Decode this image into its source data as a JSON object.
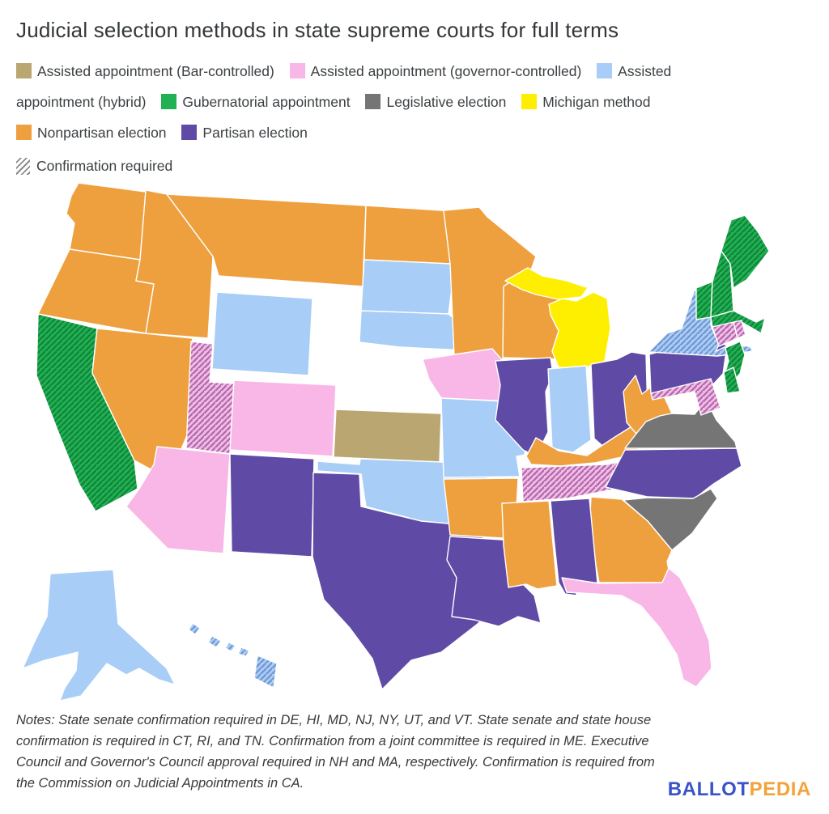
{
  "title": "Judicial selection methods in state supreme courts for full terms",
  "legend": {
    "order": [
      "bar",
      "governor",
      "hybrid",
      "gubernatorial",
      "legislative",
      "michigan",
      "nonpartisan",
      "partisan"
    ],
    "categories": {
      "bar": {
        "label": "Assisted appointment (Bar-controlled)",
        "color": "#b9a671"
      },
      "governor": {
        "label": "Assisted appointment (governor-controlled)",
        "color": "#f8b7e7",
        "hatch_color": "#a56ca6"
      },
      "hybrid": {
        "label": "Assisted appointment (hybrid)",
        "color": "#a8cdf6",
        "hatch_color": "#7394cf"
      },
      "gubernatorial": {
        "label": "Gubernatorial appointment",
        "color": "#1fb152",
        "hatch_color": "#12813a"
      },
      "legislative": {
        "label": "Legislative election",
        "color": "#757575"
      },
      "michigan": {
        "label": "Michigan method",
        "color": "#feee00"
      },
      "nonpartisan": {
        "label": "Nonpartisan election",
        "color": "#eea03f"
      },
      "partisan": {
        "label": "Partisan election",
        "color": "#5f4aa5"
      }
    },
    "confirmation": {
      "label": "Confirmation required",
      "hatch_color": "#8a8a8a"
    }
  },
  "map": {
    "border_color": "#ffffff",
    "states": [
      {
        "abbr": "WA",
        "name": "Washington",
        "category": "nonpartisan",
        "confirmation": false
      },
      {
        "abbr": "OR",
        "name": "Oregon",
        "category": "nonpartisan",
        "confirmation": false
      },
      {
        "abbr": "CA",
        "name": "California",
        "category": "gubernatorial",
        "confirmation": true
      },
      {
        "abbr": "NV",
        "name": "Nevada",
        "category": "nonpartisan",
        "confirmation": false
      },
      {
        "abbr": "ID",
        "name": "Idaho",
        "category": "nonpartisan",
        "confirmation": false
      },
      {
        "abbr": "MT",
        "name": "Montana",
        "category": "nonpartisan",
        "confirmation": false
      },
      {
        "abbr": "WY",
        "name": "Wyoming",
        "category": "hybrid",
        "confirmation": false
      },
      {
        "abbr": "UT",
        "name": "Utah",
        "category": "governor",
        "confirmation": true
      },
      {
        "abbr": "CO",
        "name": "Colorado",
        "category": "governor",
        "confirmation": false
      },
      {
        "abbr": "AZ",
        "name": "Arizona",
        "category": "governor",
        "confirmation": false
      },
      {
        "abbr": "NM",
        "name": "New Mexico",
        "category": "partisan",
        "confirmation": false
      },
      {
        "abbr": "ND",
        "name": "North Dakota",
        "category": "nonpartisan",
        "confirmation": false
      },
      {
        "abbr": "SD",
        "name": "South Dakota",
        "category": "hybrid",
        "confirmation": false
      },
      {
        "abbr": "NE",
        "name": "Nebraska",
        "category": "hybrid",
        "confirmation": false
      },
      {
        "abbr": "KS",
        "name": "Kansas",
        "category": "bar",
        "confirmation": false
      },
      {
        "abbr": "OK",
        "name": "Oklahoma",
        "category": "hybrid",
        "confirmation": false
      },
      {
        "abbr": "TX",
        "name": "Texas",
        "category": "partisan",
        "confirmation": false
      },
      {
        "abbr": "MN",
        "name": "Minnesota",
        "category": "nonpartisan",
        "confirmation": false
      },
      {
        "abbr": "IA",
        "name": "Iowa",
        "category": "governor",
        "confirmation": false
      },
      {
        "abbr": "MO",
        "name": "Missouri",
        "category": "hybrid",
        "confirmation": false
      },
      {
        "abbr": "AR",
        "name": "Arkansas",
        "category": "nonpartisan",
        "confirmation": false
      },
      {
        "abbr": "LA",
        "name": "Louisiana",
        "category": "partisan",
        "confirmation": false
      },
      {
        "abbr": "WI",
        "name": "Wisconsin",
        "category": "nonpartisan",
        "confirmation": false
      },
      {
        "abbr": "IL",
        "name": "Illinois",
        "category": "partisan",
        "confirmation": false
      },
      {
        "abbr": "MS",
        "name": "Mississippi",
        "category": "nonpartisan",
        "confirmation": false
      },
      {
        "abbr": "MI",
        "name": "Michigan",
        "category": "michigan",
        "confirmation": false
      },
      {
        "abbr": "IN",
        "name": "Indiana",
        "category": "hybrid",
        "confirmation": false
      },
      {
        "abbr": "OH",
        "name": "Ohio",
        "category": "partisan",
        "confirmation": false
      },
      {
        "abbr": "KY",
        "name": "Kentucky",
        "category": "nonpartisan",
        "confirmation": false
      },
      {
        "abbr": "TN",
        "name": "Tennessee",
        "category": "governor",
        "confirmation": true
      },
      {
        "abbr": "WV",
        "name": "West Virginia",
        "category": "nonpartisan",
        "confirmation": false
      },
      {
        "abbr": "VA",
        "name": "Virginia",
        "category": "legislative",
        "confirmation": false
      },
      {
        "abbr": "NC",
        "name": "North Carolina",
        "category": "partisan",
        "confirmation": false
      },
      {
        "abbr": "SC",
        "name": "South Carolina",
        "category": "legislative",
        "confirmation": false
      },
      {
        "abbr": "GA",
        "name": "Georgia",
        "category": "nonpartisan",
        "confirmation": false
      },
      {
        "abbr": "AL",
        "name": "Alabama",
        "category": "partisan",
        "confirmation": false
      },
      {
        "abbr": "FL",
        "name": "Florida",
        "category": "governor",
        "confirmation": false
      },
      {
        "abbr": "PA",
        "name": "Pennsylvania",
        "category": "partisan",
        "confirmation": false
      },
      {
        "abbr": "NY",
        "name": "New York",
        "category": "hybrid",
        "confirmation": true
      },
      {
        "abbr": "NJ",
        "name": "New Jersey",
        "category": "gubernatorial",
        "confirmation": true
      },
      {
        "abbr": "DE",
        "name": "Delaware",
        "category": "gubernatorial",
        "confirmation": true
      },
      {
        "abbr": "MD",
        "name": "Maryland",
        "category": "governor",
        "confirmation": true
      },
      {
        "abbr": "VT",
        "name": "Vermont",
        "category": "gubernatorial",
        "confirmation": true
      },
      {
        "abbr": "NH",
        "name": "New Hampshire",
        "category": "gubernatorial",
        "confirmation": true
      },
      {
        "abbr": "ME",
        "name": "Maine",
        "category": "gubernatorial",
        "confirmation": true
      },
      {
        "abbr": "MA",
        "name": "Massachusetts",
        "category": "gubernatorial",
        "confirmation": true
      },
      {
        "abbr": "CT",
        "name": "Connecticut",
        "category": "governor",
        "confirmation": true
      },
      {
        "abbr": "RI",
        "name": "Rhode Island",
        "category": "governor",
        "confirmation": true
      },
      {
        "abbr": "AK",
        "name": "Alaska",
        "category": "hybrid",
        "confirmation": false
      },
      {
        "abbr": "HI",
        "name": "Hawaii",
        "category": "hybrid",
        "confirmation": true
      }
    ]
  },
  "notes": "Notes: State senate confirmation required in DE, HI, MD, NJ, NY, UT, and VT. State senate and state house confirmation is required in CT, RI, and TN. Confirmation from a joint committee is required in ME. Executive Council and Governor's Council approval required in NH and MA, respectively. Confirmation is required from the Commission on Judicial Appointments in CA.",
  "logo": {
    "part1": "BALLOT",
    "part2": "PEDIA",
    "part1_color": "#3953c8",
    "part2_color": "#f2a33c"
  }
}
